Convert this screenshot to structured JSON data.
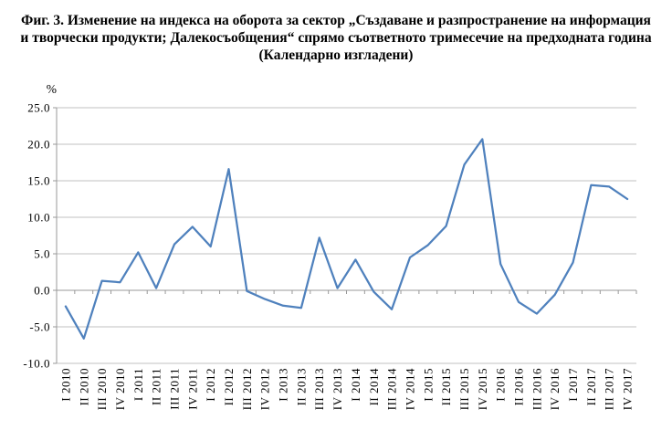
{
  "title_lines": [
    "Фиг. 3. Изменение на индекса на оборота за сектор „Създаване и разпространение на информация",
    "и творчески продукти; Далекосъобщения“ спрямо съответното тримесечие на предходната година",
    "(Календарно изгладени)"
  ],
  "colors": {
    "line": "#4F81BD",
    "gridline": "#C0C0C0",
    "axis": "#999999",
    "text": "#000000",
    "background": "#FFFFFF"
  },
  "chart_data": {
    "type": "line",
    "title": "Фиг. 3. Изменение на индекса на оборота за сектор „Създаване и разпространение на информация и творчески продукти; Далекосъобщения“ спрямо съответното тримесечие на предходната година (Календарно изгладени)",
    "xlabel": "",
    "ylabel": "%",
    "ylim": [
      -10,
      25
    ],
    "ytick_values": [
      25,
      20,
      15,
      10,
      5,
      0,
      -5,
      -10
    ],
    "ytick_labels": [
      "25.0",
      "20.0",
      "15.0",
      "10.0",
      "5.0",
      "0.0",
      "-5.0",
      "-10.0"
    ],
    "grid": true,
    "legend": false,
    "categories": [
      "I 2010",
      "II 2010",
      "III 2010",
      "IV 2010",
      "I 2011",
      "II 2011",
      "III 2011",
      "IV 2011",
      "I 2012",
      "II 2012",
      "III 2012",
      "IV 2012",
      "I 2013",
      "II 2013",
      "III 2013",
      "IV 2013",
      "I 2014",
      "II 2014",
      "III 2014",
      "IV 2014",
      "I 2015",
      "II 2015",
      "III 2015",
      "IV 2015",
      "I 2016",
      "II 2016",
      "III 2016",
      "IV 2016",
      "I 2017",
      "II 2017",
      "III 2017",
      "IV 2017"
    ],
    "values": [
      -2.2,
      -6.6,
      1.3,
      1.1,
      5.2,
      0.3,
      6.3,
      8.7,
      6.0,
      16.6,
      -0.1,
      -1.2,
      -2.1,
      -2.4,
      7.2,
      0.3,
      4.2,
      -0.2,
      -2.6,
      4.5,
      6.2,
      8.8,
      17.2,
      20.7,
      3.6,
      -1.6,
      -3.2,
      -0.6,
      3.8,
      14.4,
      14.2,
      12.5
    ]
  }
}
